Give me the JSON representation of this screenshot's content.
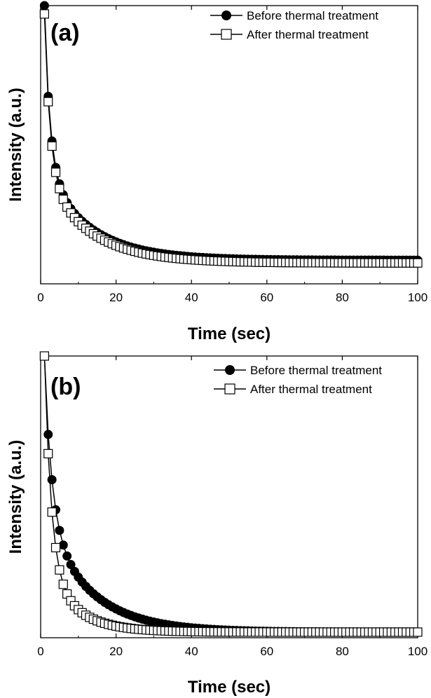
{
  "chart_data": [
    {
      "type": "line",
      "panel_label": "(a)",
      "xlabel": "Time (sec)",
      "ylabel": "Intensity (a.u.)",
      "xlim": [
        0,
        100
      ],
      "ylim": [
        0,
        1
      ],
      "y_ticks_shown": false,
      "x_ticks": [
        "0",
        "20",
        "40",
        "60",
        "80",
        "100"
      ],
      "legend": {
        "placement": "top-right"
      },
      "series": [
        {
          "name": "Before thermal treatment",
          "marker": "filled-circle",
          "decay": {
            "y0": 1.0,
            "tail": 0.085,
            "fast_amp": 0.55,
            "fast_tau": 1.6,
            "slow_amp": 0.32,
            "slow_tau": 12
          }
        },
        {
          "name": "After thermal treatment",
          "marker": "open-square",
          "decay": {
            "y0": 0.97,
            "tail": 0.075,
            "fast_amp": 0.55,
            "fast_tau": 1.6,
            "slow_amp": 0.31,
            "slow_tau": 12
          }
        }
      ]
    },
    {
      "type": "line",
      "panel_label": "(b)",
      "xlabel": "Time (sec)",
      "ylabel": "Intensity (a.u.)",
      "xlim": [
        0,
        100
      ],
      "ylim": [
        0,
        1
      ],
      "y_ticks_shown": false,
      "x_ticks": [
        "0",
        "20",
        "40",
        "60",
        "80",
        "100"
      ],
      "legend": {
        "placement": "top-right"
      },
      "series": [
        {
          "name": "Before thermal treatment",
          "marker": "filled-circle",
          "decay": {
            "y0": 1.0,
            "tail": 0.02,
            "fast_amp": 0.55,
            "fast_tau": 2.0,
            "slow_amp": 0.4,
            "slow_tau": 12
          }
        },
        {
          "name": "After thermal treatment",
          "marker": "open-square",
          "decay": {
            "y0": 1.0,
            "tail": 0.02,
            "fast_amp": 0.75,
            "fast_tau": 1.8,
            "slow_amp": 0.23,
            "slow_tau": 8
          }
        }
      ]
    }
  ]
}
